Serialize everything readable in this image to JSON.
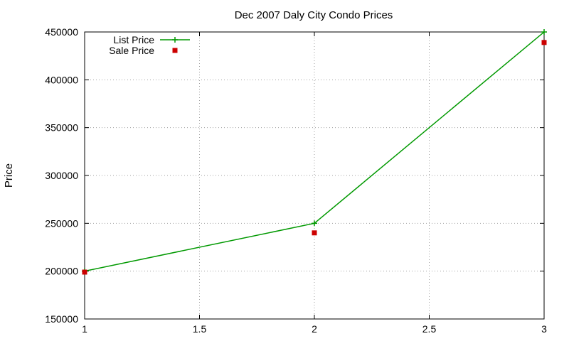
{
  "chart_data": {
    "type": "line",
    "title": "Dec 2007 Daly City Condo Prices",
    "xlabel": "",
    "ylabel": "Price",
    "xlim": [
      1,
      3
    ],
    "ylim": [
      150000,
      450000
    ],
    "x_ticks": [
      "1",
      "1.5",
      "2",
      "2.5",
      "3"
    ],
    "y_ticks": [
      "150000",
      "200000",
      "250000",
      "300000",
      "350000",
      "400000",
      "450000"
    ],
    "grid": true,
    "legend_position": "top-left",
    "series": [
      {
        "name": "List Price",
        "style": "lines+points",
        "marker": "plus",
        "color": "#009900",
        "points": [
          {
            "x": 1,
            "y": 200000
          },
          {
            "x": 2,
            "y": 250000
          },
          {
            "x": 3,
            "y": 450000
          }
        ]
      },
      {
        "name": "Sale Price",
        "style": "points",
        "marker": "square",
        "color": "#cc0000",
        "points": [
          {
            "x": 1,
            "y": 199000
          },
          {
            "x": 2,
            "y": 240000
          },
          {
            "x": 3,
            "y": 439000
          }
        ]
      }
    ]
  }
}
